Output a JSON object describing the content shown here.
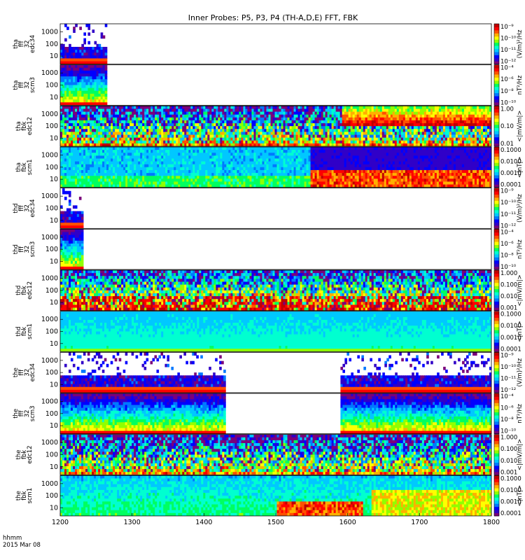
{
  "figure": {
    "title": "Inner Probes: P5, P3, P4 (TH-A,D,E) FFT, FBK",
    "footer_line1": "hhmm",
    "footer_line2": "2015 Mar 08"
  },
  "chart_data": {
    "type": "heatmap",
    "x_axis": {
      "range": [
        1200,
        1800
      ],
      "ticks": [
        1200,
        1300,
        1400,
        1500,
        1600,
        1700,
        1800
      ],
      "unit_label": "hhmm"
    },
    "y_scale": "log",
    "colormap": [
      "#7a007a",
      "#3000c8",
      "#0000ff",
      "#0078ff",
      "#00c8ff",
      "#00ffd0",
      "#00ff60",
      "#90ff00",
      "#ffff00",
      "#ffb000",
      "#ff5000",
      "#ff0000",
      "#c00000"
    ],
    "panels": [
      {
        "id": "tha-fff32-edc34",
        "label": [
          "tha",
          "fff",
          "32",
          "edc34"
        ],
        "yticks": [
          "1000",
          "100",
          "10"
        ],
        "cbar_ticks": [
          "10⁻⁹",
          "10⁻¹⁰",
          "10⁻¹¹",
          "10⁻¹²"
        ],
        "cbar_label": "(V/m)²/Hz",
        "coverage": [
          [
            1200,
            1265
          ]
        ],
        "pattern": "sparse"
      },
      {
        "id": "tha-fff32-scm3",
        "label": [
          "tha",
          "fff",
          "32",
          "scm3"
        ],
        "yticks": [
          "1000",
          "100",
          "10"
        ],
        "cbar_ticks": [
          "10⁻⁴",
          "10⁻⁶",
          "10⁻⁸",
          "10⁻¹⁰"
        ],
        "cbar_label": "nT²/Hz",
        "coverage": [
          [
            1200,
            1265
          ]
        ],
        "pattern": "scm_fff"
      },
      {
        "id": "tha-fbk-edc12",
        "label": [
          "tha",
          "fbk",
          "edc12"
        ],
        "yticks": [
          "1000",
          "100",
          "10"
        ],
        "cbar_ticks": [
          "1.00",
          "0.10",
          "0.01"
        ],
        "cbar_label": "<|mV/m|>",
        "coverage": [
          [
            1200,
            1800
          ]
        ],
        "pattern": "fbk_e",
        "seed": 11
      },
      {
        "id": "tha-fbk-scm1",
        "label": [
          "tha",
          "fbk",
          "scm1"
        ],
        "yticks": [
          "1000",
          "100",
          "10"
        ],
        "cbar_ticks": [
          "0.1000",
          "0.0100",
          "0.0010",
          "0.0001"
        ],
        "cbar_label": "<|nT|>",
        "coverage": [
          [
            1200,
            1800
          ]
        ],
        "pattern": "fbk_b",
        "seed": 12
      },
      {
        "id": "thd-fff32-edc34",
        "label": [
          "thd",
          "fff",
          "32",
          "edc34"
        ],
        "yticks": [
          "1000",
          "100",
          "10"
        ],
        "cbar_ticks": [
          "10⁻⁹",
          "10⁻¹⁰",
          "10⁻¹¹",
          "10⁻¹²"
        ],
        "cbar_label": "(V/m)²/Hz",
        "coverage": [
          [
            1200,
            1232
          ]
        ],
        "pattern": "sparse"
      },
      {
        "id": "thd-fff32-scm3",
        "label": [
          "thd",
          "fff",
          "32",
          "scm3"
        ],
        "yticks": [
          "1000",
          "100",
          "10"
        ],
        "cbar_ticks": [
          "10⁻⁴",
          "10⁻⁶",
          "10⁻⁸",
          "10⁻¹⁰"
        ],
        "cbar_label": "nT²/Hz",
        "coverage": [
          [
            1200,
            1232
          ]
        ],
        "pattern": "scm_fff"
      },
      {
        "id": "thd-fbk-edc12",
        "label": [
          "thd",
          "fbk",
          "edc12"
        ],
        "yticks": [
          "1000",
          "100",
          "10"
        ],
        "cbar_ticks": [
          "1.000",
          "0.100",
          "0.010",
          "0.001"
        ],
        "cbar_label": "<|mV/m|>",
        "coverage": [
          [
            1200,
            1800
          ]
        ],
        "pattern": "fbk_e_hot",
        "seed": 21
      },
      {
        "id": "thd-fbk-scm1",
        "label": [
          "thd",
          "fbk",
          "scm1"
        ],
        "yticks": [
          "1000",
          "100",
          "10"
        ],
        "cbar_ticks": [
          "0.1000",
          "0.0100",
          "0.0010",
          "0.0001"
        ],
        "cbar_label": "<|nT|>",
        "coverage": [
          [
            1200,
            1800
          ]
        ],
        "pattern": "fbk_b_flat",
        "seed": 22
      },
      {
        "id": "the-fff32-edc34",
        "label": [
          "the",
          "fff",
          "32",
          "edc34"
        ],
        "yticks": [
          "1000",
          "100",
          "10"
        ],
        "cbar_ticks": [
          "10⁻⁹",
          "10⁻¹⁰",
          "10⁻¹¹",
          "10⁻¹²"
        ],
        "cbar_label": "(V/m)²/Hz",
        "coverage": [
          [
            1200,
            1430
          ],
          [
            1590,
            1800
          ]
        ],
        "pattern": "sparse_e"
      },
      {
        "id": "the-fff32-scm3",
        "label": [
          "the",
          "fff",
          "32",
          "scm3"
        ],
        "yticks": [
          "1000",
          "100",
          "10"
        ],
        "cbar_ticks": [
          "10⁻⁴",
          "10⁻⁶",
          "10⁻⁸",
          "10⁻¹⁰"
        ],
        "cbar_label": "nT²/Hz",
        "coverage": [
          [
            1200,
            1430
          ],
          [
            1590,
            1800
          ]
        ],
        "pattern": "scm_fff_e"
      },
      {
        "id": "the-fbk-edc12",
        "label": [
          "the",
          "fbk",
          "edc12"
        ],
        "yticks": [
          "1000",
          "100",
          "10"
        ],
        "cbar_ticks": [
          "1.000",
          "0.100",
          "0.010",
          "0.001"
        ],
        "cbar_label": "<|mV/m|>",
        "coverage": [
          [
            1200,
            1800
          ]
        ],
        "pattern": "fbk_e",
        "seed": 31
      },
      {
        "id": "the-fbk-scm1",
        "label": [
          "the",
          "fbk",
          "scm1"
        ],
        "yticks": [
          "1000",
          "100",
          "10"
        ],
        "cbar_ticks": [
          "0.1000",
          "0.0100",
          "0.0010",
          "0.0001"
        ],
        "cbar_label": "<|nT|>",
        "coverage": [
          [
            1200,
            1800
          ]
        ],
        "pattern": "fbk_b_e",
        "seed": 32
      }
    ]
  }
}
